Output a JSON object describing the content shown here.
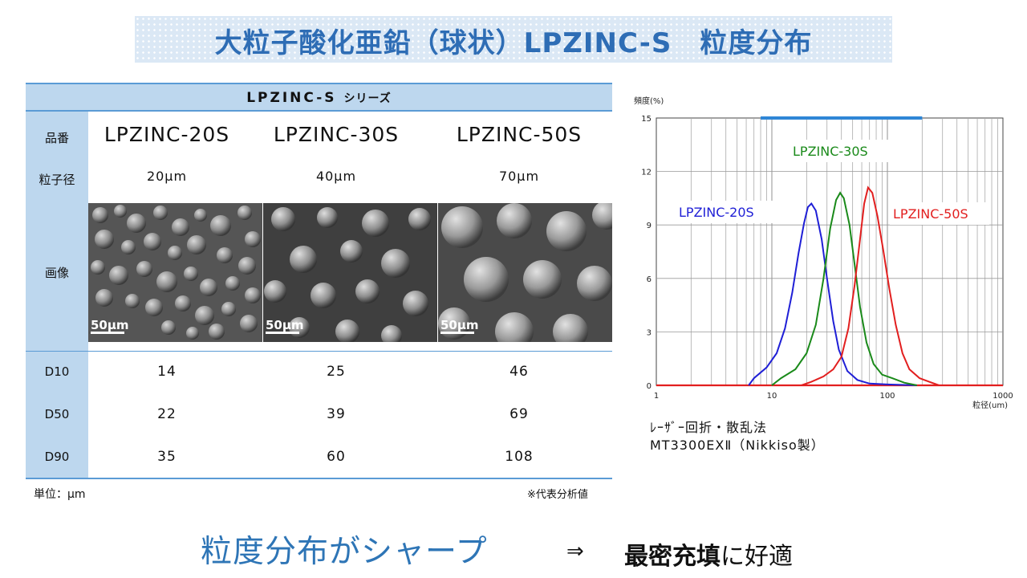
{
  "title": "大粒子酸化亜鉛（球状）LPZINC-S　粒度分布",
  "table": {
    "series_label": "LPZINC-S",
    "series_suffix": "シリーズ",
    "row_labels": {
      "product": "品番",
      "size": "粒子径",
      "image": "画像",
      "d10": "D10",
      "d50": "D50",
      "d90": "D90"
    },
    "products": [
      {
        "name": "LPZINC-20S",
        "size": "20μm",
        "scale": "50μm",
        "d10": "14",
        "d50": "22",
        "d90": "35"
      },
      {
        "name": "LPZINC-30S",
        "size": "40μm",
        "scale": "50μm",
        "d10": "25",
        "d50": "39",
        "d90": "60"
      },
      {
        "name": "LPZINC-50S",
        "size": "70μm",
        "scale": "50μm",
        "d10": "46",
        "d50": "69",
        "d90": "108"
      }
    ],
    "unit_note": "単位：μm",
    "rep_note": "※代表分析値"
  },
  "chart_data": {
    "type": "line",
    "ylabel": "頻度(%)",
    "xlabel": "粒径(um)",
    "xscale": "log",
    "xlim": [
      1,
      1000
    ],
    "ylim": [
      0,
      15
    ],
    "xticks": [
      "1",
      "10",
      "100",
      "1000"
    ],
    "yticks": [
      "0",
      "3",
      "6",
      "9",
      "12",
      "15"
    ],
    "grid": true,
    "series": [
      {
        "name": "LPZINC-20S",
        "color": "#1f1fd6",
        "points": [
          [
            6.3,
            0
          ],
          [
            7,
            0.4
          ],
          [
            9,
            1.0
          ],
          [
            11,
            1.8
          ],
          [
            13,
            3.2
          ],
          [
            15,
            5.2
          ],
          [
            17,
            7.4
          ],
          [
            19,
            9.1
          ],
          [
            20.5,
            10.0
          ],
          [
            22,
            10.2
          ],
          [
            24,
            9.8
          ],
          [
            27,
            8.2
          ],
          [
            30,
            6.0
          ],
          [
            34,
            3.6
          ],
          [
            38,
            2.0
          ],
          [
            45,
            0.8
          ],
          [
            55,
            0.3
          ],
          [
            70,
            0.1
          ],
          [
            100,
            0.05
          ],
          [
            150,
            0.02
          ],
          [
            180,
            0
          ]
        ]
      },
      {
        "name": "LPZINC-30S",
        "color": "#1a8a1a",
        "points": [
          [
            10,
            0
          ],
          [
            12,
            0.4
          ],
          [
            16,
            0.9
          ],
          [
            20,
            1.8
          ],
          [
            24,
            3.4
          ],
          [
            28,
            6.0
          ],
          [
            32,
            8.8
          ],
          [
            36,
            10.4
          ],
          [
            39,
            10.8
          ],
          [
            42,
            10.5
          ],
          [
            47,
            9.0
          ],
          [
            52,
            6.8
          ],
          [
            58,
            4.4
          ],
          [
            66,
            2.4
          ],
          [
            76,
            1.2
          ],
          [
            90,
            0.6
          ],
          [
            110,
            0.4
          ],
          [
            140,
            0.15
          ],
          [
            180,
            0
          ]
        ]
      },
      {
        "name": "LPZINC-50S",
        "color": "#e21f1f",
        "points": [
          [
            18,
            0
          ],
          [
            22,
            0.2
          ],
          [
            28,
            0.5
          ],
          [
            34,
            0.9
          ],
          [
            40,
            1.6
          ],
          [
            46,
            3.2
          ],
          [
            52,
            5.6
          ],
          [
            58,
            8.2
          ],
          [
            63,
            10.2
          ],
          [
            68,
            11.1
          ],
          [
            74,
            10.8
          ],
          [
            82,
            9.5
          ],
          [
            92,
            7.6
          ],
          [
            104,
            5.4
          ],
          [
            118,
            3.4
          ],
          [
            135,
            1.8
          ],
          [
            155,
            0.9
          ],
          [
            190,
            0.4
          ],
          [
            230,
            0.2
          ],
          [
            280,
            0
          ]
        ]
      }
    ],
    "annotations": [
      {
        "text": "LPZINC-20S",
        "color": "#1f1fd6"
      },
      {
        "text": "LPZINC-30S",
        "color": "#1a8a1a"
      },
      {
        "text": "LPZINC-50S",
        "color": "#e21f1f"
      }
    ],
    "top_band_color": "#2f86d6",
    "method": [
      "ﾚｰｻﾞｰ回折・散乱法",
      "MT3300EXⅡ（Nikkiso製）"
    ]
  },
  "bottom": {
    "message": "粒度分布がシャープ",
    "arrow": "⇒",
    "result_bold": "最密充填",
    "result_rest": "に好適"
  }
}
